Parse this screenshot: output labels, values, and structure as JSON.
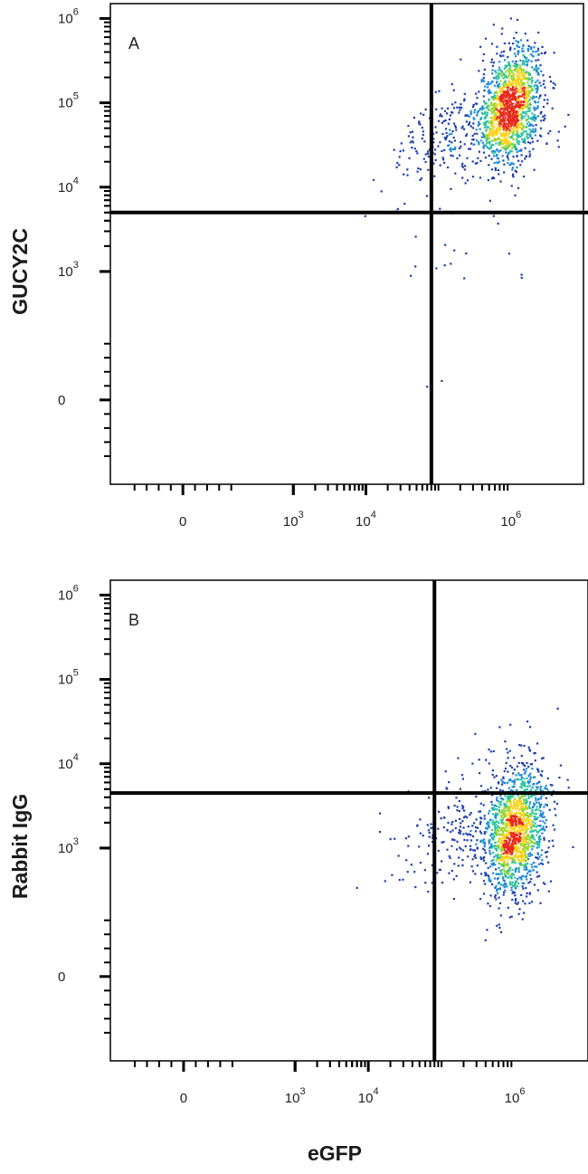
{
  "figure": {
    "xlabel": "eGFP"
  },
  "palette": {
    "density_low": "#1f3fae",
    "density_midlow": "#1e88d6",
    "density_mid": "#2ec4a0",
    "density_midhigh": "#9bd62f",
    "density_high": "#ffd21f",
    "density_peak": "#e8291a",
    "gate_line": "#000000",
    "frame": "#000000"
  },
  "chart_data": [
    {
      "type": "scatter",
      "panel_label": "A",
      "xlabel": "",
      "ylabel": "GUCY2C",
      "scale": "biexponential",
      "xlim": [
        -300,
        10000000
      ],
      "ylim": [
        -300,
        1500000
      ],
      "x_ticks": [
        {
          "value": 0,
          "base": "0",
          "exp": ""
        },
        {
          "value": 1000,
          "base": "10",
          "exp": "3"
        },
        {
          "value": 10000,
          "base": "10",
          "exp": "4"
        },
        {
          "value": 1000000,
          "base": "10",
          "exp": "6"
        }
      ],
      "y_ticks": [
        {
          "value": 0,
          "base": "0",
          "exp": ""
        },
        {
          "value": 1000,
          "base": "10",
          "exp": "3"
        },
        {
          "value": 10000,
          "base": "10",
          "exp": "4"
        },
        {
          "value": 100000,
          "base": "10",
          "exp": "5"
        },
        {
          "value": 1000000,
          "base": "10",
          "exp": "6"
        }
      ],
      "quadrant_gate": {
        "x": 80000,
        "y": 5000
      },
      "populations": [
        {
          "name": "main",
          "center": [
            1000000,
            90000
          ],
          "count": 1400,
          "spread_x": 0.22,
          "spread_y": 0.33,
          "tilt": 0.45
        },
        {
          "name": "tail",
          "center": [
            150000,
            40000
          ],
          "count": 220,
          "spread_x": 0.4,
          "spread_y": 0.25,
          "tilt": 0.3
        },
        {
          "name": "outliers",
          "center": [
            150000,
            2000
          ],
          "count": 24,
          "spread_x": 0.6,
          "spread_y": 0.6,
          "tilt": 0
        }
      ],
      "grid": false,
      "legend": "none"
    },
    {
      "type": "scatter",
      "panel_label": "B",
      "xlabel": "",
      "ylabel": "Rabbit IgG",
      "scale": "biexponential",
      "xlim": [
        -300,
        10000000
      ],
      "ylim": [
        -300,
        1500000
      ],
      "x_ticks": [
        {
          "value": 0,
          "base": "0",
          "exp": ""
        },
        {
          "value": 1000,
          "base": "10",
          "exp": "3"
        },
        {
          "value": 10000,
          "base": "10",
          "exp": "4"
        },
        {
          "value": 1000000,
          "base": "10",
          "exp": "6"
        }
      ],
      "y_ticks": [
        {
          "value": 0,
          "base": "0",
          "exp": ""
        },
        {
          "value": 1000,
          "base": "10",
          "exp": "3"
        },
        {
          "value": 10000,
          "base": "10",
          "exp": "4"
        },
        {
          "value": 100000,
          "base": "10",
          "exp": "5"
        },
        {
          "value": 1000000,
          "base": "10",
          "exp": "6"
        }
      ],
      "quadrant_gate": {
        "x": 80000,
        "y": 4500
      },
      "populations": [
        {
          "name": "main",
          "center": [
            1000000,
            1500
          ],
          "count": 1400,
          "spread_x": 0.22,
          "spread_y": 0.38,
          "tilt": 0.45
        },
        {
          "name": "tail",
          "center": [
            200000,
            1500
          ],
          "count": 200,
          "spread_x": 0.45,
          "spread_y": 0.3,
          "tilt": 0.2
        },
        {
          "name": "outliers",
          "center": [
            600000,
            12000
          ],
          "count": 20,
          "spread_x": 0.3,
          "spread_y": 0.5,
          "tilt": 0
        }
      ],
      "grid": false,
      "legend": "none"
    }
  ]
}
